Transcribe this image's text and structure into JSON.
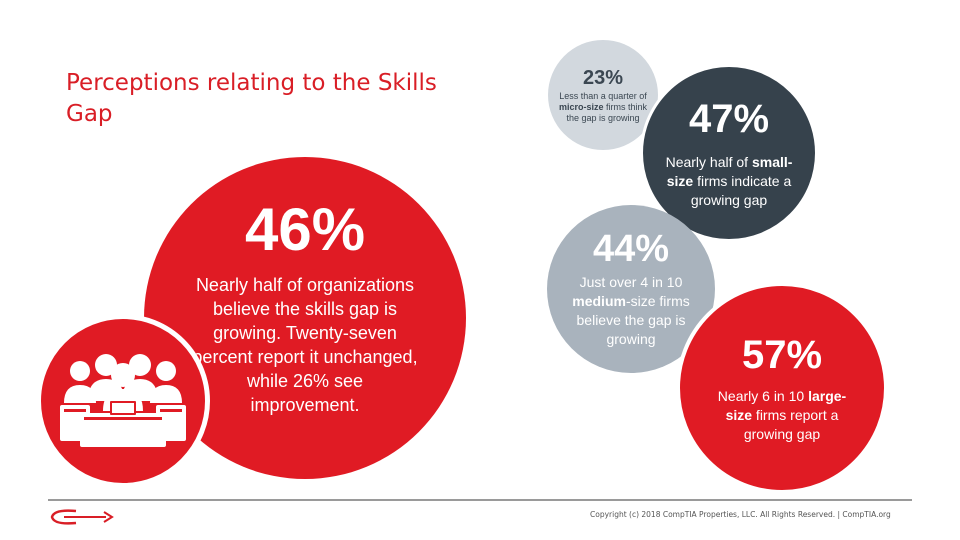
{
  "slide": {
    "title": "Perceptions relating to the Skills Gap"
  },
  "stats": {
    "overall": {
      "percent": "46%",
      "text": "Nearly half of organizations believe the skills gap is growing. Twenty-seven percent report it unchanged, while 26% see improvement."
    },
    "micro": {
      "percent": "23%",
      "text_pre": "Less than a quarter of ",
      "text_bold": "micro-size",
      "text_post": " firms think the gap is growing"
    },
    "small": {
      "percent": "47%",
      "text_pre": "Nearly half of ",
      "text_bold": "small-size",
      "text_post": " firms indicate a growing gap"
    },
    "medium": {
      "percent": "44%",
      "text_pre": "Just over 4 in 10 ",
      "text_bold": "medium",
      "text_post": "-size firms believe the gap is growing"
    },
    "large": {
      "percent": "57%",
      "text_pre": "Nearly 6 in 10 ",
      "text_bold": "large-size",
      "text_post": " firms report a growing gap"
    }
  },
  "footer": {
    "copyright": "Copyright (c) 2018 CompTIA Properties, LLC. All Rights Reserved.  |  CompTIA.org"
  },
  "colors": {
    "accent_red": "#e01b24",
    "dark_slate": "#36424c",
    "mid_gray": "#a9b3bd",
    "light_gray": "#d2d8de"
  },
  "icons": {
    "people_icon": "meeting-people-icon",
    "logo": "comptia-logo"
  }
}
